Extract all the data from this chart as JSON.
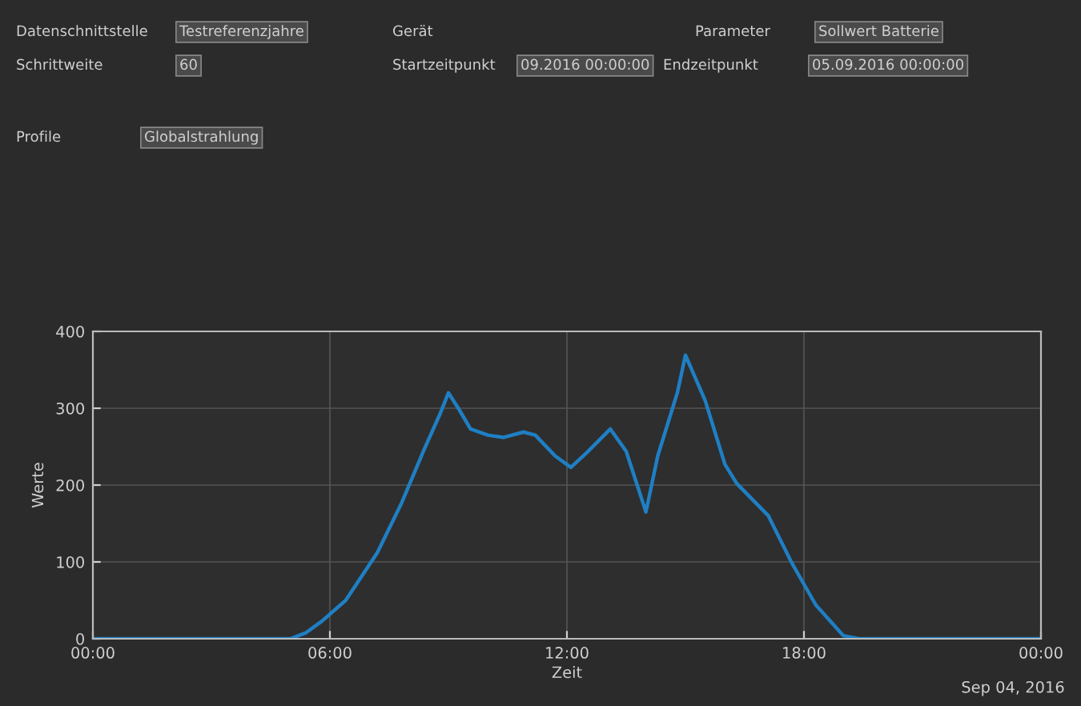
{
  "chart_data": {
    "type": "line",
    "xlabel": "Zeit",
    "ylabel": "Werte",
    "x": [
      0,
      5.0,
      5.4,
      5.8,
      6.4,
      7.2,
      7.8,
      8.4,
      8.8,
      9.0,
      9.25,
      9.56,
      10.0,
      10.4,
      10.9,
      11.2,
      11.7,
      12.1,
      12.5,
      13.1,
      13.5,
      14.0,
      14.3,
      14.8,
      15.0,
      15.5,
      16.0,
      16.3,
      17.1,
      17.7,
      18.3,
      19.0,
      19.4,
      24
    ],
    "series": [
      {
        "color": "#1f7fc4",
        "values": [
          0,
          0,
          8,
          23,
          50,
          112,
          175,
          248,
          294,
          320,
          300,
          273,
          265,
          262,
          269,
          265,
          238,
          223,
          242,
          273,
          244,
          165,
          238,
          321,
          369,
          310,
          227,
          202,
          160,
          98,
          44,
          4,
          0,
          0
        ]
      }
    ],
    "xlim": [
      0,
      24
    ],
    "ylim": [
      0,
      400
    ],
    "xticks": [
      {
        "value": 0,
        "label": "00:00"
      },
      {
        "value": 6,
        "label": "06:00"
      },
      {
        "value": 12,
        "label": "12:00"
      },
      {
        "value": 18,
        "label": "18:00"
      },
      {
        "value": 24,
        "label": "00:00"
      }
    ],
    "yticks": [
      0,
      100,
      200,
      300,
      400
    ],
    "grid": true,
    "marker": "none",
    "line_style": "solid",
    "annotations": [
      "Sep 04, 2016",
      "Datenschnittstelle",
      "Testreferenzjahre",
      "Gerät",
      "Parameter",
      "Sollwert Batterie",
      "Schrittweite",
      "60",
      "Startzeitpunkt",
      "09.2016 00:00:00",
      "Endzeitpunkt",
      "05.09.2016 00:00:00",
      "Profile",
      "Globalstrahlung"
    ]
  }
}
